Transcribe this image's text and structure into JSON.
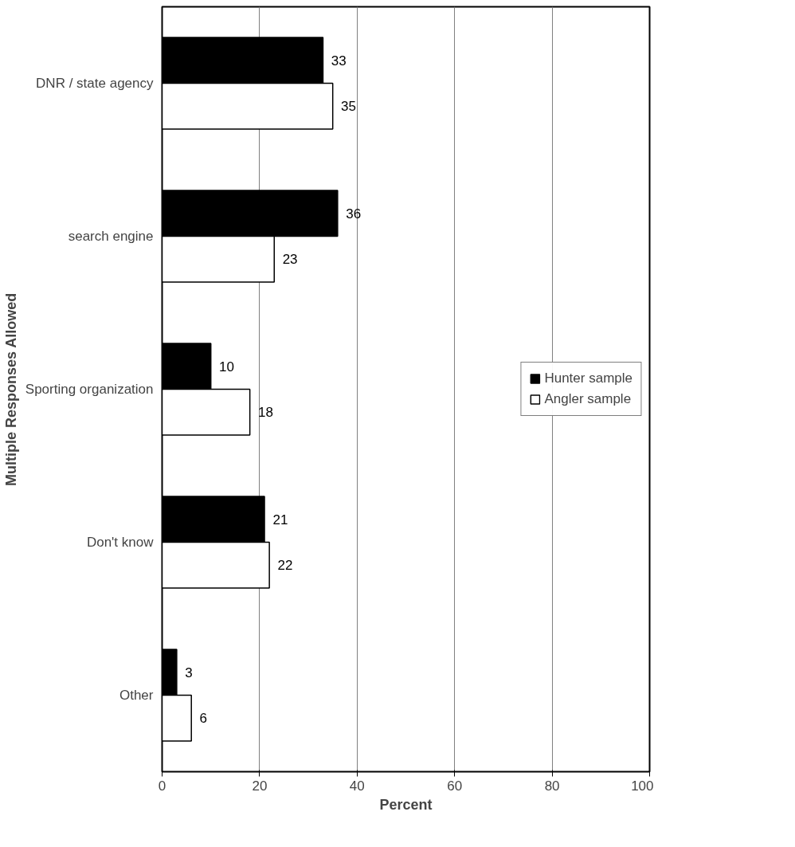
{
  "chart_data": {
    "type": "bar",
    "orientation": "horizontal",
    "categories": [
      "DNR / state agency",
      "search engine",
      "Sporting organization",
      "Don't know",
      "Other"
    ],
    "series": [
      {
        "name": "Hunter sample",
        "color": "#000000",
        "values": [
          33,
          36,
          10,
          21,
          3
        ]
      },
      {
        "name": "Angler sample",
        "color": "#ffffff",
        "values": [
          35,
          23,
          18,
          22,
          6
        ]
      }
    ],
    "xlabel": "Percent",
    "ylabel": "Multiple Responses Allowed",
    "xlim": [
      0,
      100
    ],
    "xticks": [
      0,
      20,
      40,
      60,
      80,
      100
    ],
    "grid": "x",
    "legend": "right",
    "data_labels": true
  }
}
